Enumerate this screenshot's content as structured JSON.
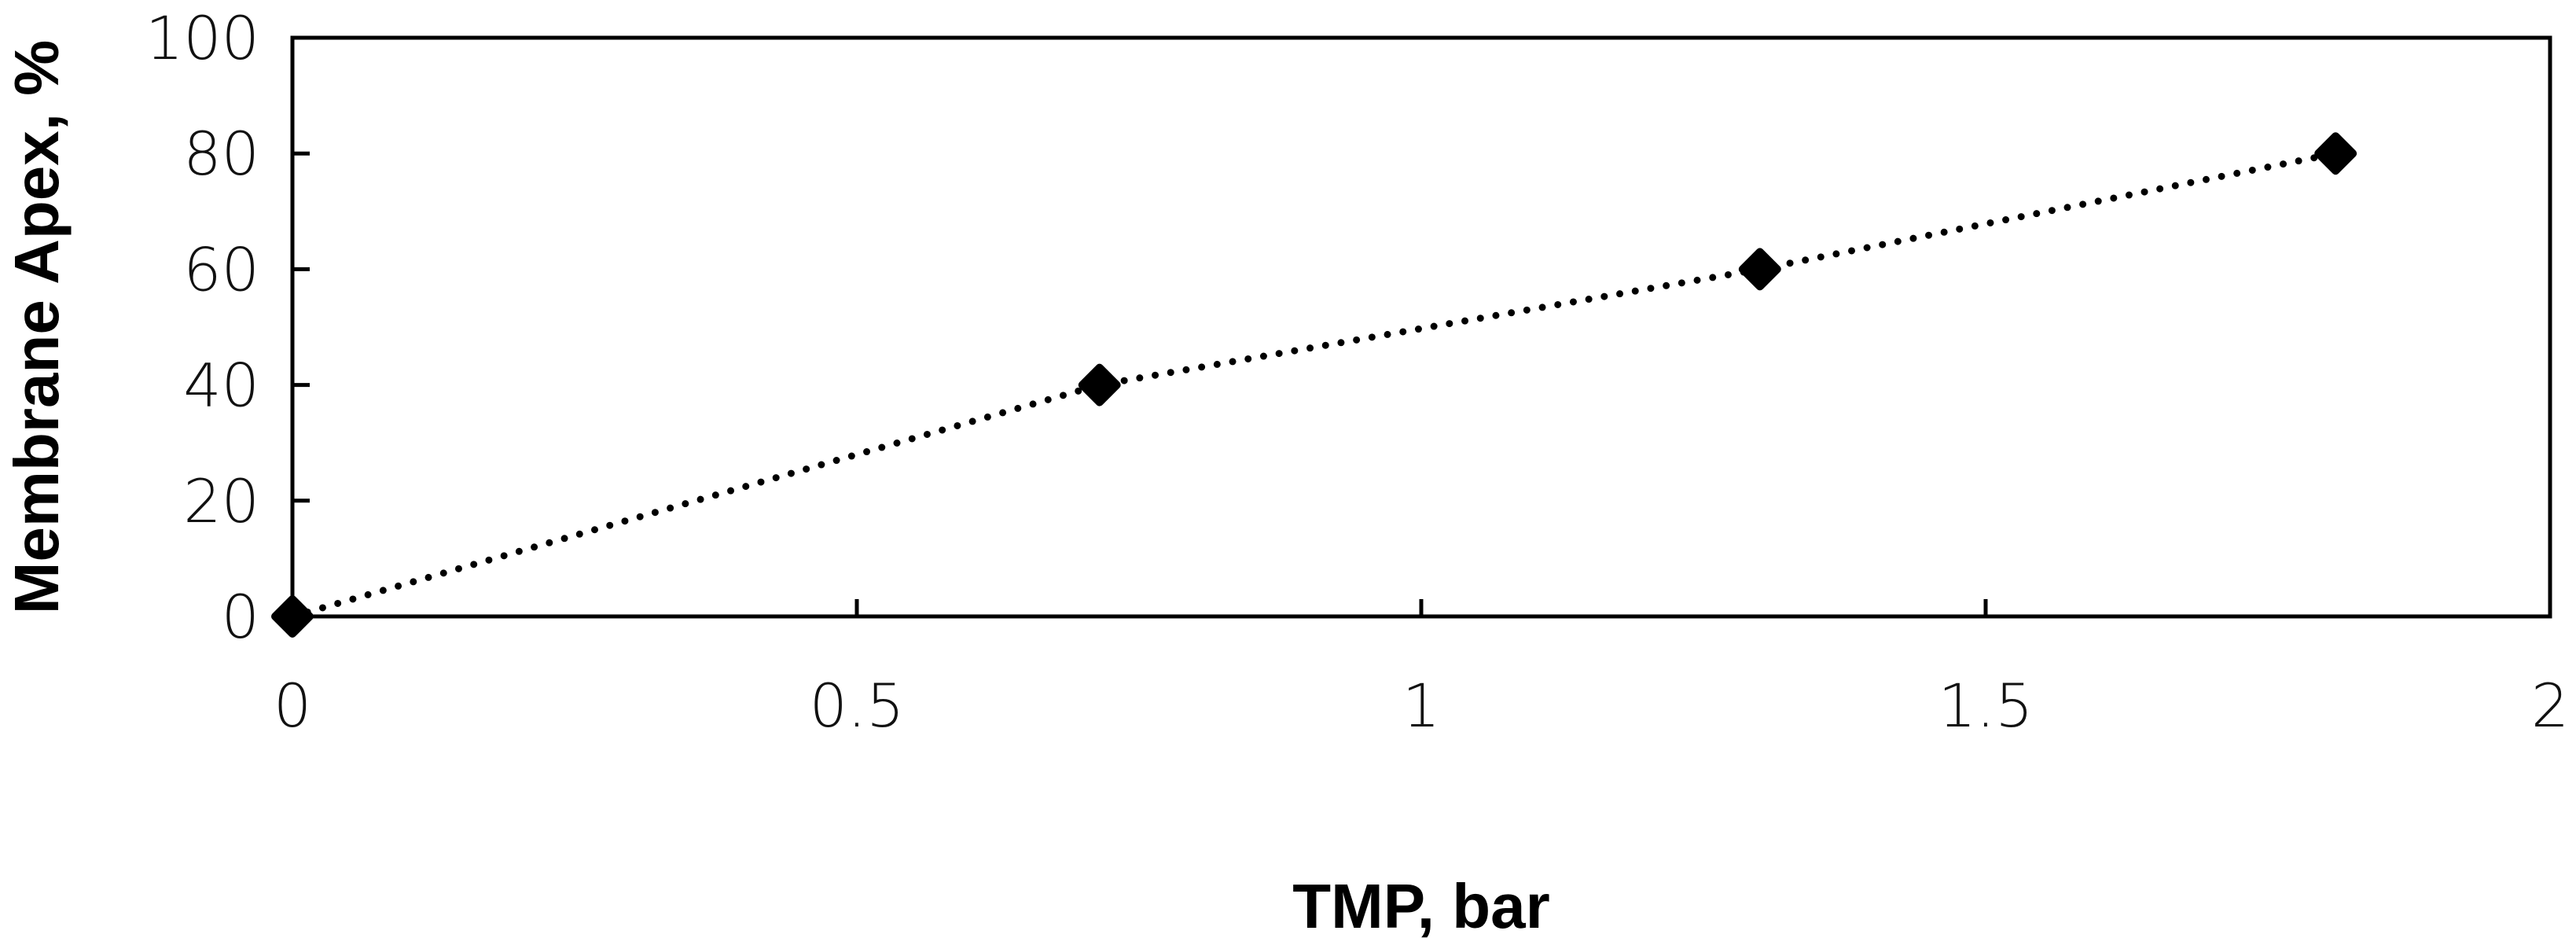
{
  "chart_data": {
    "type": "scatter",
    "title": "",
    "xlabel": "TMP, bar",
    "ylabel": "Membrane Apex, %",
    "xlim": [
      0,
      2
    ],
    "ylim": [
      0,
      100
    ],
    "xticks": [
      "0",
      "0.5",
      "1",
      "1.5",
      "2"
    ],
    "yticks": [
      "0",
      "20",
      "40",
      "60",
      "80",
      "100"
    ],
    "grid": false,
    "legend": "none",
    "trendline": "dotted linear",
    "series": [
      {
        "x": [
          0,
          0.715,
          1.3,
          1.81
        ],
        "y": [
          0,
          40,
          60,
          80
        ],
        "marker": "diamond",
        "color": "#000000"
      }
    ]
  }
}
